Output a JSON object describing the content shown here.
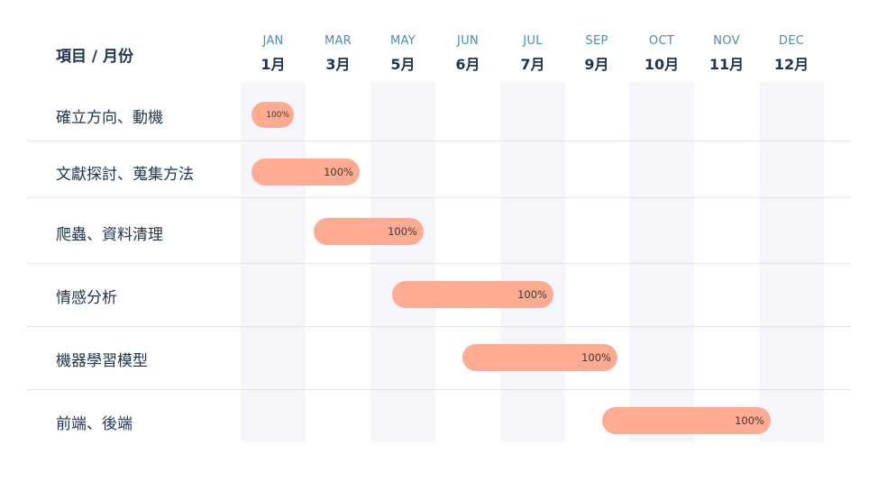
{
  "header": {
    "title": "項目 / 月份"
  },
  "months": [
    {
      "en": "JAN",
      "zh": "1月"
    },
    {
      "en": "MAR",
      "zh": "3月"
    },
    {
      "en": "MAY",
      "zh": "5月"
    },
    {
      "en": "JUN",
      "zh": "6月"
    },
    {
      "en": "JUL",
      "zh": "7月"
    },
    {
      "en": "SEP",
      "zh": "9月"
    },
    {
      "en": "OCT",
      "zh": "10月"
    },
    {
      "en": "NOV",
      "zh": "11月"
    },
    {
      "en": "DEC",
      "zh": "12月"
    }
  ],
  "tasks": [
    {
      "name": "確立方向、動機",
      "progress": "100%"
    },
    {
      "name": "文獻探討、蒐集方法",
      "progress": "100%"
    },
    {
      "name": "爬蟲、資料清理",
      "progress": "100%"
    },
    {
      "name": "情感分析",
      "progress": "100%"
    },
    {
      "name": "機器學習模型",
      "progress": "100%"
    },
    {
      "name": "前端、後端",
      "progress": "100%"
    }
  ],
  "colors": {
    "bar": "#ffab92",
    "band": "#f5f6fb",
    "text": "#1f3550",
    "month_en": "#4a8da8"
  }
}
